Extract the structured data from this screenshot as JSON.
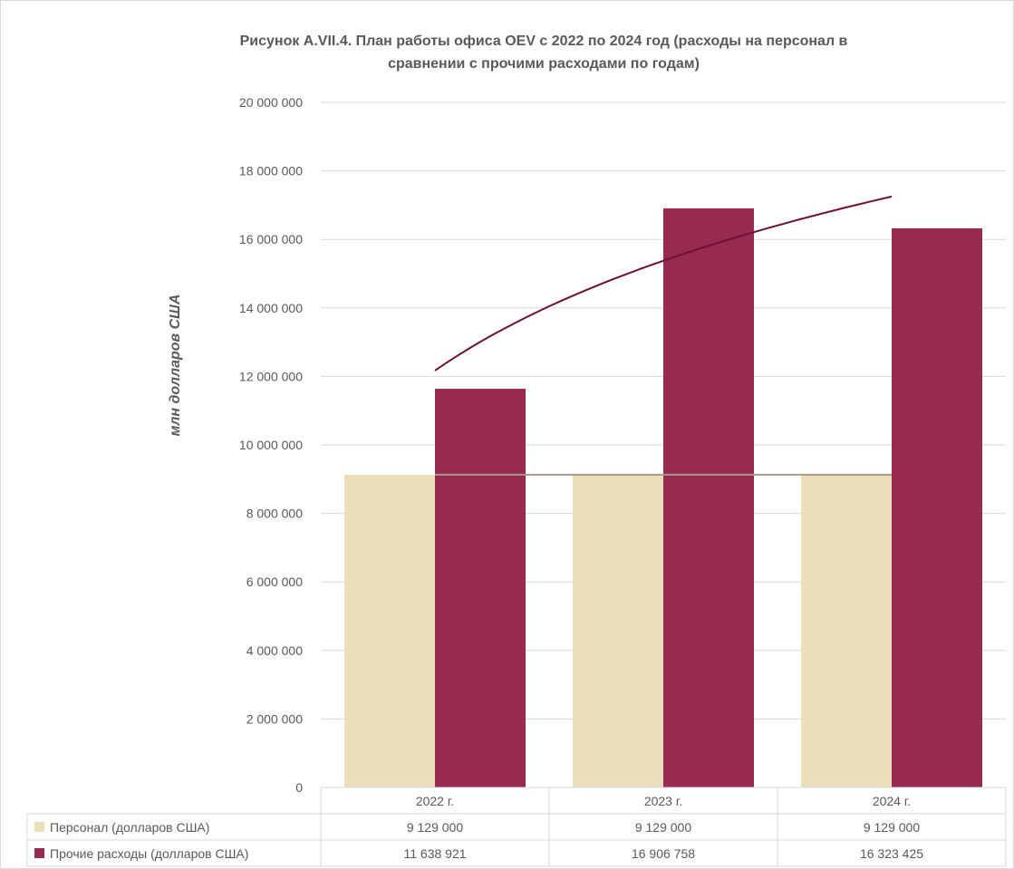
{
  "chart_data": {
    "type": "bar",
    "title": "Рисунок A.VII.4. План работы офиса OEV с 2022 по 2024 год (расходы на персонал в сравнении с прочими расходами по годам)",
    "title_lines": [
      "Рисунок A.VII.4. План работы офиса OEV с 2022 по 2024 год (расходы на персонал в",
      "сравнении с прочими расходами по годам)"
    ],
    "ylabel": "млн долларов США",
    "xlabel": "",
    "categories": [
      "2022 г.",
      "2023 г.",
      "2024 г."
    ],
    "ylim": [
      0,
      20000000
    ],
    "yticks": [
      0,
      2000000,
      4000000,
      6000000,
      8000000,
      10000000,
      12000000,
      14000000,
      16000000,
      18000000,
      20000000
    ],
    "ytick_labels": [
      "0",
      "2 000 000",
      "4 000 000",
      "6 000 000",
      "8 000 000",
      "10 000 000",
      "12 000 000",
      "14 000 000",
      "16 000 000",
      "18 000 000",
      "20 000 000"
    ],
    "grid": true,
    "legend_placement": "data-table-bottom",
    "series": [
      {
        "name": "Персонал (долларов США)",
        "values": [
          9129000,
          9129000,
          9129000
        ],
        "value_labels": [
          "9 129 000",
          "9 129 000",
          "9 129 000"
        ],
        "color": "#eadfb9"
      },
      {
        "name": "Прочие расходы (долларов США)",
        "values": [
          11638921,
          16906758,
          16323425
        ],
        "value_labels": [
          "11 638 921",
          "16 906 758",
          "16 323 425"
        ],
        "color": "#982a52"
      }
    ],
    "trendlines": [
      {
        "series": "Персонал (долларов США)",
        "kind": "linear",
        "color": "#a89a86",
        "y": [
          9129000,
          9129000,
          9129000
        ]
      },
      {
        "series": "Прочие расходы (долларов США)",
        "kind": "logarithmic",
        "color": "#6b1134",
        "y": [
          12200000,
          15300000,
          17300000
        ]
      }
    ]
  }
}
